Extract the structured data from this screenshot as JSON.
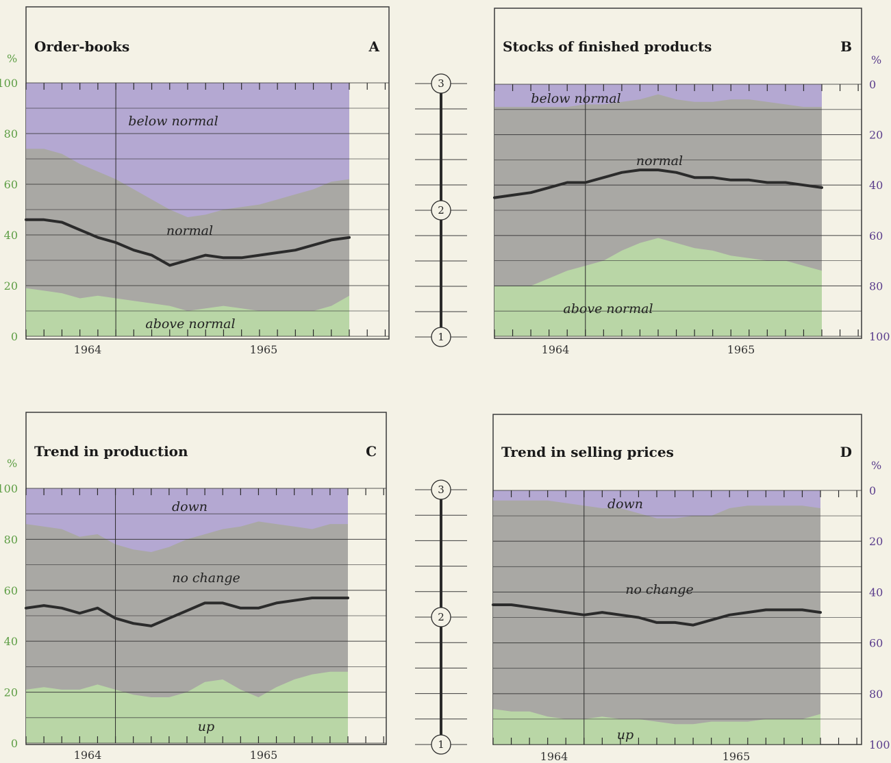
{
  "colors": {
    "upper_band": "#b4a8d2",
    "middle_band": "#a9a8a4",
    "lower_band": "#b9d6a6",
    "line": "#2b2b2b",
    "left_axis_text": "#5e9e45",
    "right_axis_text": "#5a3d8c",
    "frame": "#3a3a3a",
    "background": "#f4f2e6"
  },
  "scale_numbers": [
    "1",
    "2",
    "3"
  ],
  "chart_data": [
    {
      "type": "area",
      "panel_letter": "A",
      "title": "Order-books",
      "axis_side": "left",
      "axis_unit": "%",
      "axis_ticks": [
        "0",
        "20",
        "40",
        "60",
        "80",
        "100"
      ],
      "years": [
        "1964",
        "1965"
      ],
      "band_labels": [
        "below normal",
        "normal",
        "above normal"
      ],
      "ylim": [
        0,
        100
      ],
      "months": 19,
      "lower_boundary": [
        19,
        18,
        17,
        15,
        16,
        15,
        14,
        13,
        12,
        10,
        11,
        12,
        11,
        10,
        10,
        10,
        10,
        12,
        16
      ],
      "upper_boundary": [
        74,
        74,
        72,
        68,
        65,
        62,
        58,
        54,
        50,
        47,
        48,
        50,
        51,
        52,
        54,
        56,
        58,
        61,
        62
      ],
      "line": [
        46,
        46,
        45,
        42,
        39,
        37,
        34,
        32,
        28,
        30,
        32,
        31,
        31,
        32,
        33,
        34,
        36,
        38,
        39
      ]
    },
    {
      "type": "area",
      "panel_letter": "B",
      "title": "Stocks of finished products",
      "axis_side": "right",
      "axis_unit": "%",
      "axis_ticks": [
        "0",
        "20",
        "40",
        "60",
        "80",
        "100"
      ],
      "years": [
        "1964",
        "1965"
      ],
      "band_labels": [
        "below normal",
        "normal",
        "above normal"
      ],
      "ylim": [
        0,
        100
      ],
      "months": 19,
      "lower_boundary": [
        80,
        80,
        80,
        77,
        74,
        72,
        70,
        66,
        63,
        61,
        63,
        65,
        66,
        68,
        69,
        70,
        70,
        72,
        74
      ],
      "upper_boundary": [
        9,
        9,
        9,
        9,
        9,
        8,
        8,
        7,
        6,
        4,
        6,
        7,
        7,
        6,
        6,
        7,
        8,
        9,
        9
      ],
      "line": [
        45,
        44,
        43,
        41,
        39,
        39,
        37,
        35,
        34,
        34,
        35,
        37,
        37,
        38,
        38,
        39,
        39,
        40,
        41
      ]
    },
    {
      "type": "area",
      "panel_letter": "C",
      "title": "Trend in production",
      "axis_side": "left",
      "axis_unit": "%",
      "axis_ticks": [
        "0",
        "20",
        "40",
        "60",
        "80",
        "100"
      ],
      "years": [
        "1964",
        "1965"
      ],
      "band_labels": [
        "down",
        "no change",
        "up"
      ],
      "ylim": [
        0,
        100
      ],
      "months": 19,
      "lower_boundary": [
        21,
        22,
        21,
        21,
        23,
        21,
        19,
        18,
        18,
        20,
        24,
        25,
        21,
        18,
        22,
        25,
        27,
        28,
        28
      ],
      "upper_boundary": [
        86,
        85,
        84,
        81,
        82,
        78,
        76,
        75,
        77,
        80,
        82,
        84,
        85,
        87,
        86,
        85,
        84,
        86,
        86
      ],
      "line": [
        53,
        54,
        53,
        51,
        53,
        49,
        47,
        46,
        49,
        52,
        55,
        55,
        53,
        53,
        55,
        56,
        57,
        57,
        57
      ]
    },
    {
      "type": "area",
      "panel_letter": "D",
      "title": "Trend in selling prices",
      "axis_side": "right",
      "axis_unit": "%",
      "axis_ticks": [
        "0",
        "20",
        "40",
        "60",
        "80",
        "100"
      ],
      "years": [
        "1964",
        "1965"
      ],
      "band_labels": [
        "down",
        "no change",
        "up"
      ],
      "ylim": [
        0,
        100
      ],
      "months": 19,
      "lower_boundary": [
        86,
        87,
        87,
        89,
        90,
        90,
        89,
        90,
        90,
        91,
        92,
        92,
        91,
        91,
        91,
        90,
        90,
        90,
        88
      ],
      "upper_boundary": [
        4,
        4,
        4,
        4,
        5,
        6,
        7,
        7,
        9,
        11,
        11,
        10,
        10,
        7,
        6,
        6,
        6,
        6,
        7
      ],
      "line": [
        45,
        45,
        46,
        47,
        48,
        49,
        48,
        49,
        50,
        52,
        52,
        53,
        51,
        49,
        48,
        47,
        47,
        47,
        48
      ]
    }
  ]
}
